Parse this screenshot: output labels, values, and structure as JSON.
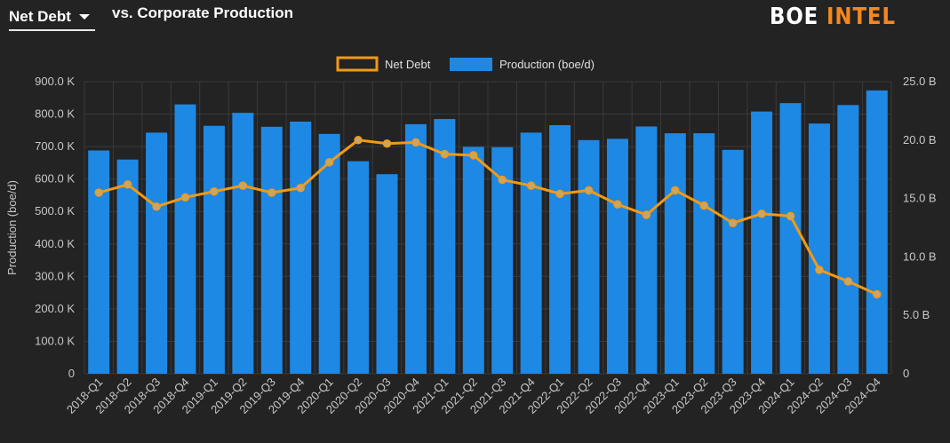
{
  "header": {
    "metric_select_label": "Net Debt",
    "subtitle": "vs. Corporate Production",
    "brand_part1": "BOE",
    "brand_part2": "INTEL"
  },
  "colors": {
    "background": "#232323",
    "bar": "#1e88e5",
    "line": "#f29a12",
    "grid": "#3a3a3a",
    "axis_text": "#c8c8c8",
    "brand_accent": "#f5871f"
  },
  "icons": {
    "metric_select_caret": "caret-down-icon"
  },
  "chart_data": {
    "type": "bar",
    "categories": [
      "2018-Q1",
      "2018-Q2",
      "2018-Q3",
      "2018-Q4",
      "2019-Q1",
      "2019-Q2",
      "2019-Q3",
      "2019-Q4",
      "2020-Q1",
      "2020-Q2",
      "2020-Q3",
      "2020-Q4",
      "2021-Q1",
      "2021-Q2",
      "2021-Q3",
      "2021-Q4",
      "2022-Q1",
      "2022-Q2",
      "2022-Q3",
      "2022-Q4",
      "2023-Q1",
      "2023-Q2",
      "2023-Q3",
      "2023-Q4",
      "2024-Q1",
      "2024-Q2",
      "2024-Q3",
      "2024-Q4"
    ],
    "series": [
      {
        "name": "Production (boe/d)",
        "type": "bar",
        "axis": "left",
        "values": [
          688000,
          660000,
          743000,
          830000,
          764000,
          804000,
          761000,
          777000,
          739000,
          655000,
          615000,
          769000,
          785000,
          699000,
          698000,
          743000,
          766000,
          720000,
          724000,
          762000,
          741000,
          741000,
          690000,
          808000,
          834000,
          771000,
          828000,
          873000
        ]
      },
      {
        "name": "Net Debt",
        "type": "line",
        "axis": "right",
        "values": [
          15.5,
          16.2,
          14.3,
          15.1,
          15.6,
          16.1,
          15.5,
          15.9,
          18.1,
          20.0,
          19.7,
          19.8,
          18.8,
          18.7,
          16.6,
          16.1,
          15.4,
          15.7,
          14.5,
          13.6,
          15.7,
          14.4,
          12.9,
          13.7,
          13.5,
          8.9,
          7.9,
          6.8
        ]
      }
    ],
    "legend": {
      "position": "top-center",
      "items": [
        "Net Debt",
        "Production (boe/d)"
      ]
    },
    "left_axis": {
      "label": "Production (boe/d)",
      "range": [
        0,
        900000
      ],
      "ticks": [
        "0",
        "100.0 K",
        "200.0 K",
        "300.0 K",
        "400.0 K",
        "500.0 K",
        "600.0 K",
        "700.0 K",
        "800.0 K",
        "900.0 K"
      ]
    },
    "right_axis": {
      "label": "",
      "range": [
        0,
        25
      ],
      "ticks": [
        "0",
        "5.0 B",
        "10.0 B",
        "15.0 B",
        "20.0 B",
        "25.0 B"
      ]
    },
    "grid": true
  }
}
